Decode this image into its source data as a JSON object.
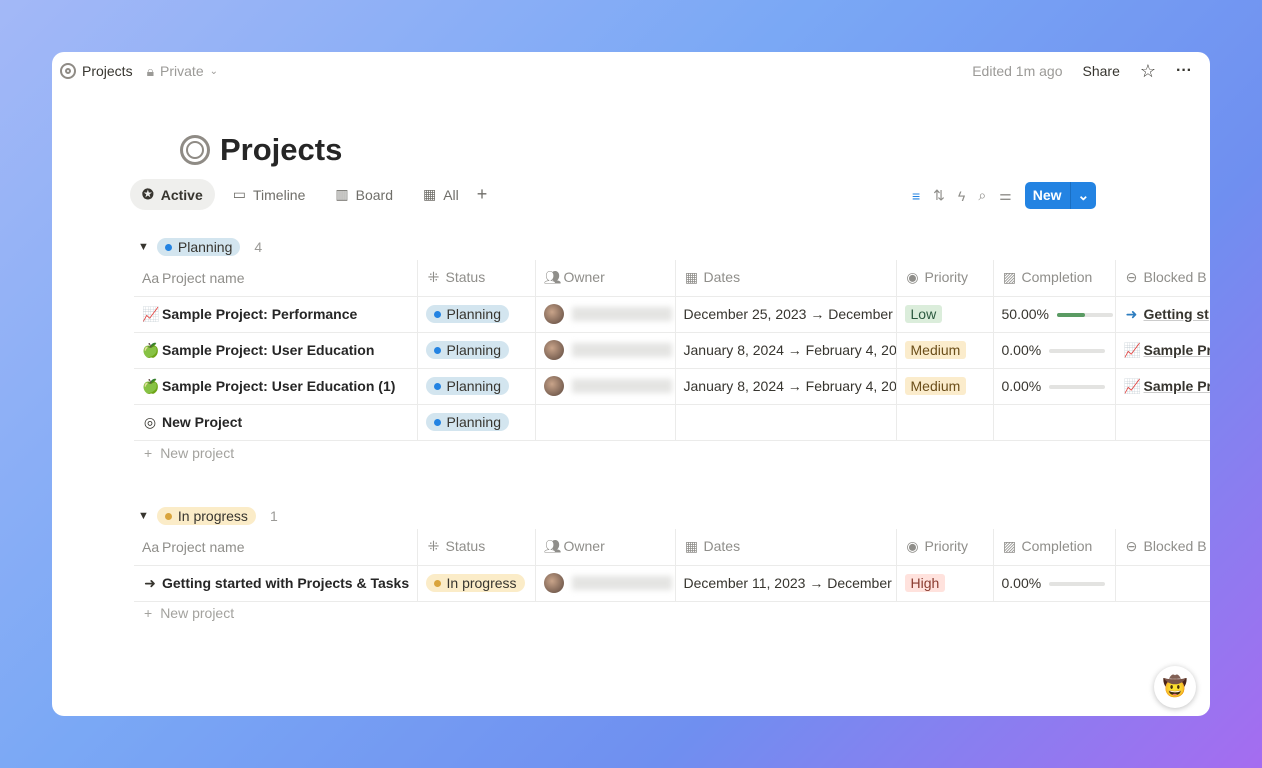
{
  "topbar": {
    "title": "Projects",
    "privacy": "Private",
    "edited": "Edited 1m ago",
    "share": "Share"
  },
  "page": {
    "title": "Projects"
  },
  "tabs": [
    {
      "label": "Active",
      "icon": "star-circle-icon"
    },
    {
      "label": "Timeline",
      "icon": "timeline-icon"
    },
    {
      "label": "Board",
      "icon": "board-icon"
    },
    {
      "label": "All",
      "icon": "table-icon"
    }
  ],
  "toolbar": {
    "new_label": "New"
  },
  "columns": [
    "Project name",
    "Status",
    "Owner",
    "Dates",
    "Priority",
    "Completion",
    "Blocked B"
  ],
  "new_project_label": "New project",
  "colors": {
    "accent": "#2383e2",
    "planning_bg": "#d3e5ef",
    "planning_dot": "#2383e2",
    "progress_bg": "#fbecc8",
    "progress_dot": "#d9a43c",
    "low_bg": "#dbeddb",
    "medium_bg": "#fbeccc",
    "high_bg": "#ffe2dd"
  },
  "groups": [
    {
      "label": "Planning",
      "count": "4",
      "kind": "planning",
      "rows": [
        {
          "icon": "📈",
          "name": "Sample Project: Performance",
          "status": "Planning",
          "owner": true,
          "dates": "December 25, 2023 → December",
          "priority": "Low",
          "completion": "50.00%",
          "progress": 0.5,
          "blocked_icon": "➜",
          "blocked": "Getting st"
        },
        {
          "icon": "🍏",
          "name": "Sample Project: User Education",
          "status": "Planning",
          "owner": true,
          "dates": "January 8, 2024 → February 4, 20",
          "priority": "Medium",
          "completion": "0.00%",
          "progress": 0,
          "blocked_icon": "📈",
          "blocked": "Sample Pr"
        },
        {
          "icon": "🍏",
          "name": "Sample Project: User Education (1)",
          "status": "Planning",
          "owner": true,
          "dates": "January 8, 2024 → February 4, 20",
          "priority": "Medium",
          "completion": "0.00%",
          "progress": 0,
          "blocked_icon": "📈",
          "blocked": "Sample Pr"
        },
        {
          "icon": "◎",
          "name": "New Project",
          "status": "Planning",
          "owner": false,
          "dates": "",
          "priority": "",
          "completion": "",
          "progress": null,
          "blocked_icon": "",
          "blocked": ""
        }
      ]
    },
    {
      "label": "In progress",
      "count": "1",
      "kind": "progress",
      "rows": [
        {
          "icon": "➜",
          "name": "Getting started with Projects & Tasks",
          "status": "In progress",
          "owner": true,
          "dates": "December 11, 2023 → December",
          "priority": "High",
          "completion": "0.00%",
          "progress": 0,
          "blocked_icon": "",
          "blocked": ""
        }
      ]
    }
  ]
}
